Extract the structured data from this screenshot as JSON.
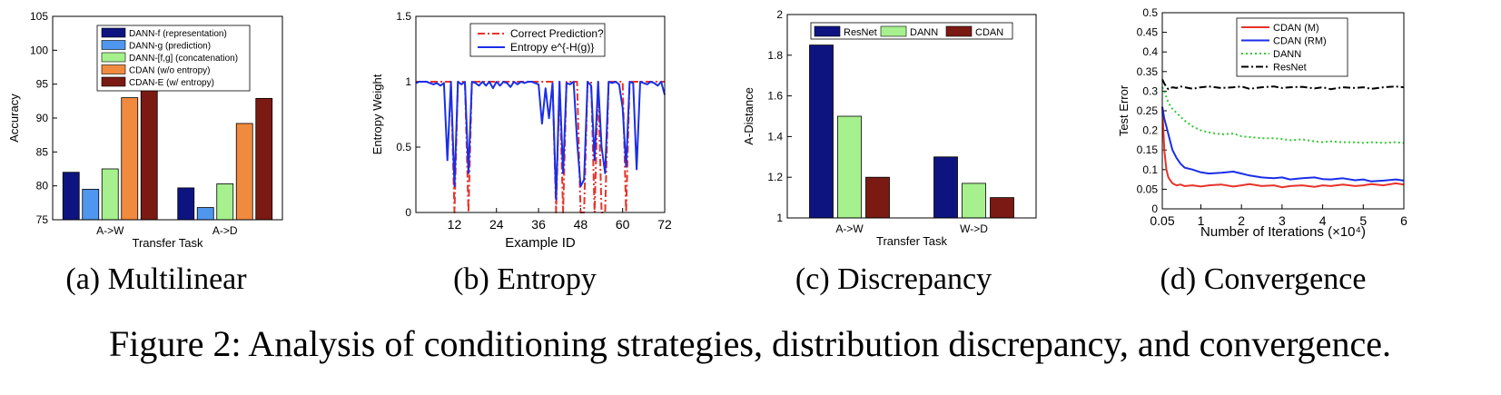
{
  "figure": {
    "caption": "Figure 2: Analysis of conditioning strategies, distribution discrepancy, and convergence."
  },
  "chart_data": [
    {
      "id": "a",
      "type": "bar",
      "subcaption": "(a) Multilinear",
      "xlabel": "Transfer Task",
      "ylabel": "Accuracy",
      "categories": [
        "A->W",
        "A->D"
      ],
      "ylim": [
        75,
        105
      ],
      "yticks": [
        75,
        80,
        85,
        90,
        95,
        100,
        105
      ],
      "legend_position": "top",
      "series": [
        {
          "name": "DANN-f (representation)",
          "color": "#0d1480",
          "values": [
            82.0,
            79.7
          ]
        },
        {
          "name": "DANN-g (prediction)",
          "color": "#4f96ee",
          "values": [
            79.5,
            76.8
          ]
        },
        {
          "name": "DANN-[f,g] (concatenation)",
          "color": "#a6f08e",
          "values": [
            82.5,
            80.3
          ]
        },
        {
          "name": "CDAN (w/o entropy)",
          "color": "#f08a3e",
          "values": [
            93.0,
            89.2
          ]
        },
        {
          "name": "CDAN-E (w/ entropy)",
          "color": "#7a1a13",
          "values": [
            94.5,
            92.9
          ]
        }
      ],
      "grid": false
    },
    {
      "id": "b",
      "type": "line",
      "subcaption": "(b) Entropy",
      "xlabel": "Example ID",
      "ylabel": "Entropy Weight",
      "xlim": [
        1,
        72
      ],
      "ylim": [
        0,
        1.5
      ],
      "xticks": [
        12,
        24,
        36,
        48,
        60,
        72
      ],
      "yticks": [
        0,
        0.5,
        1,
        1.5
      ],
      "legend_position": "top-right",
      "series": [
        {
          "name": "Correct Prediction?",
          "color": "#e8332a",
          "style": "dashdot",
          "x": [
            1,
            2,
            3,
            4,
            5,
            6,
            7,
            8,
            9,
            10,
            11,
            12,
            13,
            14,
            15,
            16,
            17,
            18,
            19,
            20,
            21,
            22,
            23,
            24,
            25,
            26,
            27,
            28,
            29,
            30,
            31,
            32,
            33,
            34,
            35,
            36,
            37,
            38,
            39,
            40,
            41,
            42,
            43,
            44,
            45,
            46,
            47,
            48,
            49,
            50,
            51,
            52,
            53,
            54,
            55,
            56,
            57,
            58,
            59,
            60,
            61,
            62,
            63,
            64,
            65,
            66,
            67,
            68,
            69,
            70,
            71,
            72
          ],
          "y": [
            1,
            1,
            1,
            1,
            1,
            1,
            1,
            1,
            1,
            1,
            1,
            0,
            1,
            1,
            1,
            0,
            1,
            1,
            1,
            1,
            1,
            1,
            1,
            1,
            1,
            1,
            1,
            1,
            1,
            1,
            1,
            1,
            1,
            1,
            1,
            1,
            1,
            1,
            1,
            1,
            0,
            1,
            0,
            1,
            1,
            1,
            1,
            0,
            0,
            1,
            1,
            0,
            1,
            0,
            0,
            1,
            1,
            1,
            1,
            1,
            0,
            1,
            1,
            1,
            1,
            1,
            1,
            1,
            1,
            1,
            1,
            1
          ]
        },
        {
          "name": "Entropy e^{-H(g)}",
          "color": "#1a2ee8",
          "style": "solid",
          "x": [
            1,
            2,
            3,
            4,
            5,
            6,
            7,
            8,
            9,
            10,
            11,
            12,
            13,
            14,
            15,
            16,
            17,
            18,
            19,
            20,
            21,
            22,
            23,
            24,
            25,
            26,
            27,
            28,
            29,
            30,
            31,
            32,
            33,
            34,
            35,
            36,
            37,
            38,
            39,
            40,
            41,
            42,
            43,
            44,
            45,
            46,
            47,
            48,
            49,
            50,
            51,
            52,
            53,
            54,
            55,
            56,
            57,
            58,
            59,
            60,
            61,
            62,
            63,
            64,
            65,
            66,
            67,
            68,
            69,
            70,
            71,
            72
          ],
          "y": [
            0.99,
            1.0,
            1.0,
            1.0,
            0.99,
            0.98,
            0.99,
            0.97,
            0.99,
            0.4,
            1.0,
            0.2,
            1.0,
            0.98,
            1.0,
            0.3,
            1.0,
            0.99,
            0.97,
            1.0,
            0.97,
            1.0,
            0.95,
            1.0,
            0.97,
            1.0,
            0.99,
            0.96,
            1.0,
            0.98,
            1.0,
            0.99,
            1.0,
            1.0,
            0.99,
            0.98,
            0.68,
            0.95,
            0.72,
            0.99,
            0.1,
            1.0,
            0.3,
            0.99,
            0.98,
            1.0,
            0.55,
            0.2,
            0.25,
            1.0,
            0.97,
            0.4,
            1.0,
            0.5,
            0.3,
            1.0,
            0.99,
            1.0,
            0.98,
            0.8,
            0.35,
            1.0,
            0.99,
            0.33,
            1.0,
            0.99,
            0.98,
            1.0,
            0.99,
            0.97,
            1.0,
            0.9
          ]
        }
      ],
      "grid": false
    },
    {
      "id": "c",
      "type": "bar",
      "subcaption": "(c) Discrepancy",
      "xlabel": "Transfer Task",
      "ylabel": "A-Distance",
      "categories": [
        "A->W",
        "W->D"
      ],
      "ylim": [
        1,
        2
      ],
      "yticks": [
        1,
        1.2,
        1.4,
        1.6,
        1.8,
        2
      ],
      "legend_position": "top",
      "series": [
        {
          "name": "ResNet",
          "color": "#0d1480",
          "values": [
            1.85,
            1.3
          ]
        },
        {
          "name": "DANN",
          "color": "#a6f08e",
          "values": [
            1.5,
            1.17
          ]
        },
        {
          "name": "CDAN",
          "color": "#7a1a13",
          "values": [
            1.2,
            1.1
          ]
        }
      ],
      "grid": false
    },
    {
      "id": "d",
      "type": "line",
      "subcaption": "(d) Convergence",
      "xlabel": "Number of Iterations (×10⁴)",
      "ylabel": "Test Error",
      "xlim": [
        0.05,
        6
      ],
      "ylim": [
        0,
        0.5
      ],
      "xtick_labels": [
        "0.05",
        "1",
        "2",
        "3",
        "4",
        "5",
        "6"
      ],
      "yticks": [
        0,
        0.05,
        0.1,
        0.15,
        0.2,
        0.25,
        0.3,
        0.35,
        0.4,
        0.45,
        0.5
      ],
      "legend_position": "top-right",
      "series": [
        {
          "name": "CDAN (M)",
          "color": "#e8332a",
          "style": "solid",
          "x": [
            0.05,
            0.1,
            0.15,
            0.2,
            0.3,
            0.4,
            0.5,
            0.6,
            0.8,
            1.0,
            1.2,
            1.5,
            1.8,
            2.0,
            2.2,
            2.5,
            2.8,
            3.0,
            3.2,
            3.5,
            3.8,
            4.0,
            4.2,
            4.5,
            4.8,
            5.0,
            5.2,
            5.5,
            5.8,
            6.0
          ],
          "y": [
            0.26,
            0.15,
            0.1,
            0.08,
            0.065,
            0.06,
            0.062,
            0.058,
            0.06,
            0.057,
            0.06,
            0.062,
            0.057,
            0.06,
            0.063,
            0.058,
            0.06,
            0.055,
            0.058,
            0.06,
            0.056,
            0.06,
            0.058,
            0.062,
            0.058,
            0.06,
            0.063,
            0.06,
            0.065,
            0.062
          ]
        },
        {
          "name": "CDAN (RM)",
          "color": "#1a2ee8",
          "style": "solid",
          "x": [
            0.05,
            0.1,
            0.15,
            0.2,
            0.3,
            0.4,
            0.5,
            0.6,
            0.8,
            1.0,
            1.2,
            1.5,
            1.8,
            2.0,
            2.2,
            2.5,
            2.8,
            3.0,
            3.2,
            3.5,
            3.8,
            4.0,
            4.2,
            4.5,
            4.8,
            5.0,
            5.2,
            5.5,
            5.8,
            6.0
          ],
          "y": [
            0.26,
            0.23,
            0.21,
            0.19,
            0.15,
            0.13,
            0.115,
            0.105,
            0.1,
            0.093,
            0.09,
            0.092,
            0.095,
            0.09,
            0.085,
            0.08,
            0.078,
            0.08,
            0.075,
            0.078,
            0.08,
            0.076,
            0.075,
            0.078,
            0.073,
            0.075,
            0.07,
            0.072,
            0.075,
            0.072
          ]
        },
        {
          "name": "DANN",
          "color": "#33c833",
          "style": "dotted",
          "x": [
            0.05,
            0.1,
            0.15,
            0.2,
            0.3,
            0.4,
            0.5,
            0.6,
            0.8,
            1.0,
            1.2,
            1.5,
            1.8,
            2.0,
            2.2,
            2.5,
            2.8,
            3.0,
            3.2,
            3.5,
            3.8,
            4.0,
            4.2,
            4.5,
            4.8,
            5.0,
            5.2,
            5.5,
            5.8,
            6.0
          ],
          "y": [
            0.31,
            0.3,
            0.285,
            0.27,
            0.255,
            0.245,
            0.235,
            0.225,
            0.21,
            0.2,
            0.195,
            0.19,
            0.192,
            0.185,
            0.183,
            0.18,
            0.18,
            0.178,
            0.175,
            0.177,
            0.172,
            0.17,
            0.172,
            0.17,
            0.17,
            0.168,
            0.17,
            0.168,
            0.17,
            0.168
          ]
        },
        {
          "name": "ResNet",
          "color": "#000000",
          "style": "dashdot",
          "x": [
            0.05,
            0.1,
            0.15,
            0.2,
            0.3,
            0.4,
            0.5,
            0.6,
            0.8,
            1.0,
            1.2,
            1.5,
            1.8,
            2.0,
            2.2,
            2.5,
            2.8,
            3.0,
            3.2,
            3.5,
            3.8,
            4.0,
            4.2,
            4.5,
            4.8,
            5.0,
            5.2,
            5.5,
            5.8,
            6.0
          ],
          "y": [
            0.33,
            0.32,
            0.31,
            0.305,
            0.31,
            0.308,
            0.312,
            0.31,
            0.306,
            0.31,
            0.312,
            0.308,
            0.31,
            0.312,
            0.306,
            0.31,
            0.312,
            0.308,
            0.31,
            0.311,
            0.307,
            0.31,
            0.305,
            0.31,
            0.308,
            0.31,
            0.306,
            0.31,
            0.312,
            0.31
          ]
        }
      ],
      "grid": false
    }
  ]
}
